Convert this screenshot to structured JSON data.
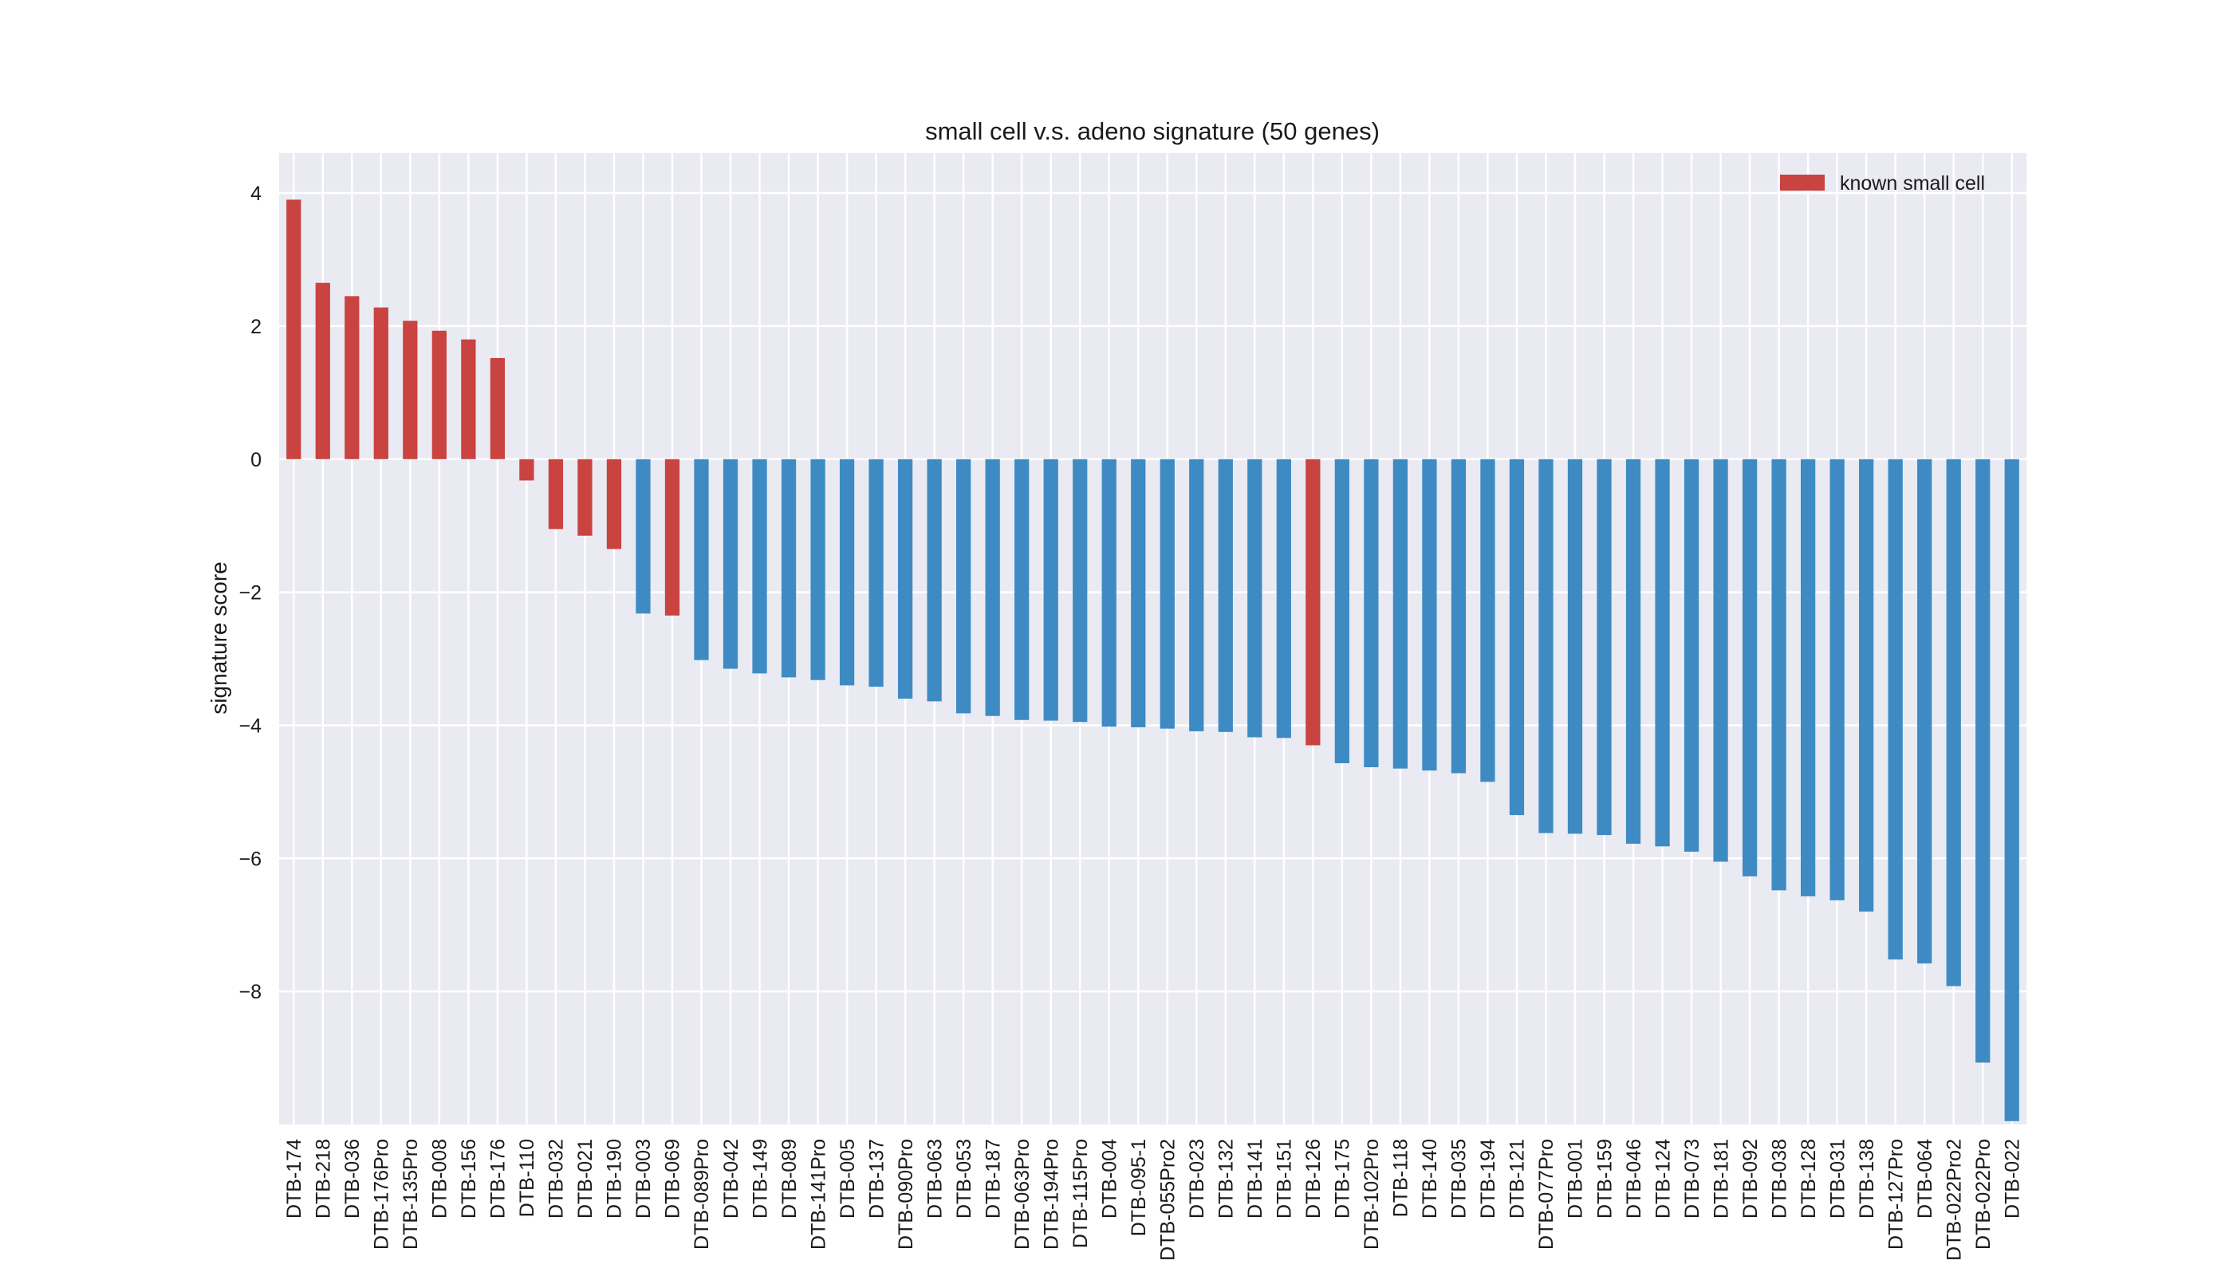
{
  "chart_data": {
    "type": "bar",
    "title": "small cell v.s. adeno signature (50 genes)",
    "xlabel": "",
    "ylabel": "signature score",
    "ylim": [
      -10.0,
      4.6
    ],
    "yticks": [
      4,
      2,
      0,
      -2,
      -4,
      -6,
      -8
    ],
    "grid": true,
    "background": "#EAEAF2",
    "colors": {
      "known_small_cell": "#C94340",
      "other": "#3E8BC4"
    },
    "legend": {
      "position": "top-right",
      "entries": [
        {
          "label": "known small cell",
          "color": "#C94340"
        }
      ]
    },
    "categories": [
      "DTB-174",
      "DTB-218",
      "DTB-036",
      "DTB-176Pro",
      "DTB-135Pro",
      "DTB-008",
      "DTB-156",
      "DTB-176",
      "DTB-110",
      "DTB-032",
      "DTB-021",
      "DTB-190",
      "DTB-003",
      "DTB-069",
      "DTB-089Pro",
      "DTB-042",
      "DTB-149",
      "DTB-089",
      "DTB-141Pro",
      "DTB-005",
      "DTB-137",
      "DTB-090Pro",
      "DTB-063",
      "DTB-053",
      "DTB-187",
      "DTB-063Pro",
      "DTB-194Pro",
      "DTB-115Pro",
      "DTB-004",
      "DTB-095-1",
      "DTB-055Pro2",
      "DTB-023",
      "DTB-132",
      "DTB-141",
      "DTB-151",
      "DTB-126",
      "DTB-175",
      "DTB-102Pro",
      "DTB-118",
      "DTB-140",
      "DTB-035",
      "DTB-194",
      "DTB-121",
      "DTB-077Pro",
      "DTB-001",
      "DTB-159",
      "DTB-046",
      "DTB-124",
      "DTB-073",
      "DTB-181",
      "DTB-092",
      "DTB-038",
      "DTB-128",
      "DTB-031",
      "DTB-138",
      "DTB-127Pro",
      "DTB-064",
      "DTB-022Pro2",
      "DTB-022Pro",
      "DTB-022"
    ],
    "values": [
      3.9,
      2.65,
      2.45,
      2.28,
      2.08,
      1.93,
      1.8,
      1.52,
      -0.32,
      -1.05,
      -1.15,
      -1.35,
      -2.32,
      -2.35,
      -3.02,
      -3.15,
      -3.22,
      -3.28,
      -3.32,
      -3.4,
      -3.42,
      -3.6,
      -3.64,
      -3.82,
      -3.86,
      -3.92,
      -3.93,
      -3.95,
      -4.02,
      -4.03,
      -4.05,
      -4.09,
      -4.1,
      -4.18,
      -4.19,
      -4.3,
      -4.57,
      -4.63,
      -4.65,
      -4.68,
      -4.72,
      -4.85,
      -5.35,
      -5.62,
      -5.63,
      -5.65,
      -5.78,
      -5.82,
      -5.9,
      -6.05,
      -6.27,
      -6.48,
      -6.57,
      -6.63,
      -6.8,
      -7.52,
      -7.58,
      -7.92,
      -9.07,
      -9.95
    ],
    "known_small_cell": [
      true,
      true,
      true,
      true,
      true,
      true,
      true,
      true,
      true,
      true,
      true,
      true,
      false,
      true,
      false,
      false,
      false,
      false,
      false,
      false,
      false,
      false,
      false,
      false,
      false,
      false,
      false,
      false,
      false,
      false,
      false,
      false,
      false,
      false,
      false,
      true,
      false,
      false,
      false,
      false,
      false,
      false,
      false,
      false,
      false,
      false,
      false,
      false,
      false,
      false,
      false,
      false,
      false,
      false,
      false,
      false,
      false,
      false,
      false,
      false
    ]
  }
}
